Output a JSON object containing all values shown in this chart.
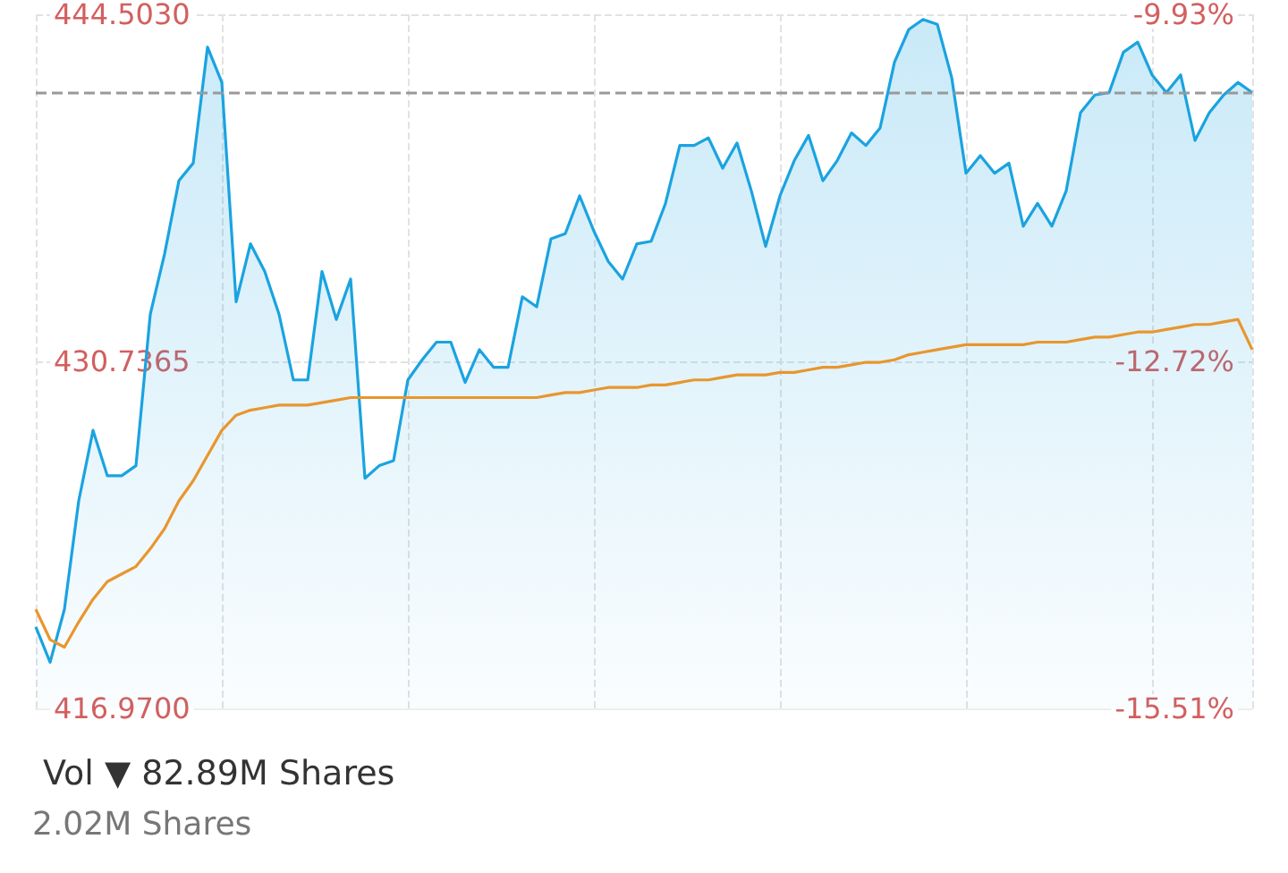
{
  "chart_data": {
    "type": "area",
    "categories": [
      null,
      null,
      null,
      null,
      null,
      null,
      null,
      null,
      null,
      null,
      null,
      null,
      null,
      null,
      null,
      null,
      null,
      null,
      null,
      null,
      null,
      null,
      null,
      null,
      null,
      null,
      null,
      null,
      null,
      null,
      null,
      null,
      null,
      null,
      null,
      null,
      null,
      null,
      null,
      null,
      null,
      null,
      null,
      null,
      null,
      null,
      null,
      null,
      null,
      null,
      null,
      null,
      null,
      null,
      null,
      null,
      null,
      null,
      null,
      null,
      null,
      null,
      null,
      null,
      null,
      null,
      null,
      null,
      null,
      null,
      null,
      null,
      null,
      null,
      null,
      null,
      null,
      null,
      null,
      null,
      null,
      null,
      null,
      null,
      null,
      null
    ],
    "series": [
      {
        "color": "#1aa3e0",
        "values": [
          420.2,
          418.8,
          420.9,
          425.2,
          428.0,
          426.2,
          426.2,
          426.6,
          432.6,
          435.0,
          437.9,
          438.6,
          443.2,
          441.8,
          433.1,
          435.4,
          434.3,
          432.6,
          430.0,
          430.0,
          434.3,
          432.4,
          434.0,
          426.1,
          426.6,
          426.8,
          430.0,
          430.8,
          431.5,
          431.5,
          429.9,
          431.2,
          430.5,
          430.5,
          433.3,
          432.9,
          435.6,
          435.8,
          437.3,
          435.9,
          434.7,
          434.0,
          435.4,
          435.5,
          437.0,
          439.3,
          439.3,
          439.6,
          438.4,
          439.4,
          437.5,
          435.3,
          437.3,
          438.7,
          439.7,
          437.9,
          438.7,
          439.8,
          439.3,
          440.0,
          442.6,
          443.9,
          444.3,
          444.1,
          442.0,
          438.2,
          438.9,
          438.2,
          438.6,
          436.1,
          437.0,
          436.1,
          437.5,
          440.6,
          441.3,
          441.4,
          443.0,
          443.4,
          442.1,
          441.4,
          442.1,
          439.5,
          440.6,
          441.3,
          441.8,
          441.4
        ]
      },
      {
        "type": "line",
        "color": "#e8962e",
        "values": [
          420.9,
          419.7,
          419.4,
          420.4,
          421.3,
          422.0,
          422.3,
          422.6,
          423.3,
          424.1,
          425.2,
          426.0,
          427.0,
          428.0,
          428.6,
          428.8,
          428.9,
          429.0,
          429.0,
          429.0,
          429.1,
          429.2,
          429.3,
          429.3,
          429.3,
          429.3,
          429.3,
          429.3,
          429.3,
          429.3,
          429.3,
          429.3,
          429.3,
          429.3,
          429.3,
          429.3,
          429.4,
          429.5,
          429.5,
          429.6,
          429.7,
          429.7,
          429.7,
          429.8,
          429.8,
          429.9,
          430.0,
          430.0,
          430.1,
          430.2,
          430.2,
          430.2,
          430.3,
          430.3,
          430.4,
          430.5,
          430.5,
          430.6,
          430.7,
          430.7,
          430.8,
          431.0,
          431.1,
          431.2,
          431.3,
          431.4,
          431.4,
          431.4,
          431.4,
          431.4,
          431.5,
          431.5,
          431.5,
          431.6,
          431.7,
          431.7,
          431.8,
          431.9,
          431.9,
          432.0,
          432.1,
          432.2,
          432.2,
          432.3,
          432.4,
          431.2
        ]
      }
    ],
    "ylim": [
      416.97,
      444.503
    ],
    "yticks": [
      {
        "value": 416.97,
        "label": "416.9700"
      },
      {
        "value": 430.7365,
        "label": "430.7365"
      },
      {
        "value": 444.503,
        "label": "444.5030"
      }
    ],
    "y2lim": [
      -15.51,
      -9.93
    ],
    "y2ticks": [
      {
        "value": -15.51,
        "label": "-15.51%"
      },
      {
        "value": -12.72,
        "label": "-12.72%"
      },
      {
        "value": -9.93,
        "label": "-9.93%"
      }
    ],
    "ref_lines": [
      {
        "axis": "y",
        "value": 441.4,
        "color": "#999999",
        "line_style": "dashed"
      }
    ],
    "grid": true,
    "line_style": "solid",
    "annotations": [
      "Vol ▼ 82.89M Shares",
      "2.02M Shares"
    ]
  }
}
